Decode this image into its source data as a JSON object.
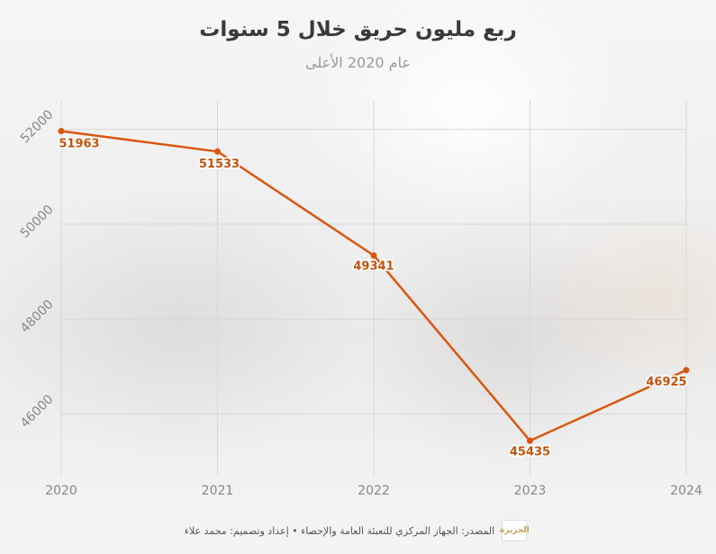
{
  "header": {
    "title": "ربع مليون حريق خلال 5 سنوات",
    "subtitle": "عام 2020 الأعلى"
  },
  "footer": {
    "source": "المصدر: الجهاز المركزي للتعبئة العامة والإحصاء • إعداد وتصميم: محمد علاء",
    "logo_text": "الجزيرة"
  },
  "colors": {
    "line": "#d9560f",
    "label": "#c4530c",
    "grid": "#d8d8d8",
    "tick": "#888888"
  },
  "chart_data": {
    "type": "line",
    "title": "ربع مليون حريق خلال 5 سنوات",
    "subtitle": "عام 2020 الأعلى",
    "x": [
      "2020",
      "2021",
      "2022",
      "2023",
      "2024"
    ],
    "series": [
      {
        "values": [
          51963,
          51533,
          49341,
          45435,
          46925
        ]
      }
    ],
    "y_ticks": [
      46000,
      48000,
      50000,
      52000
    ],
    "ylim": [
      44700,
      52600
    ],
    "grid": true,
    "data_labels": true
  }
}
